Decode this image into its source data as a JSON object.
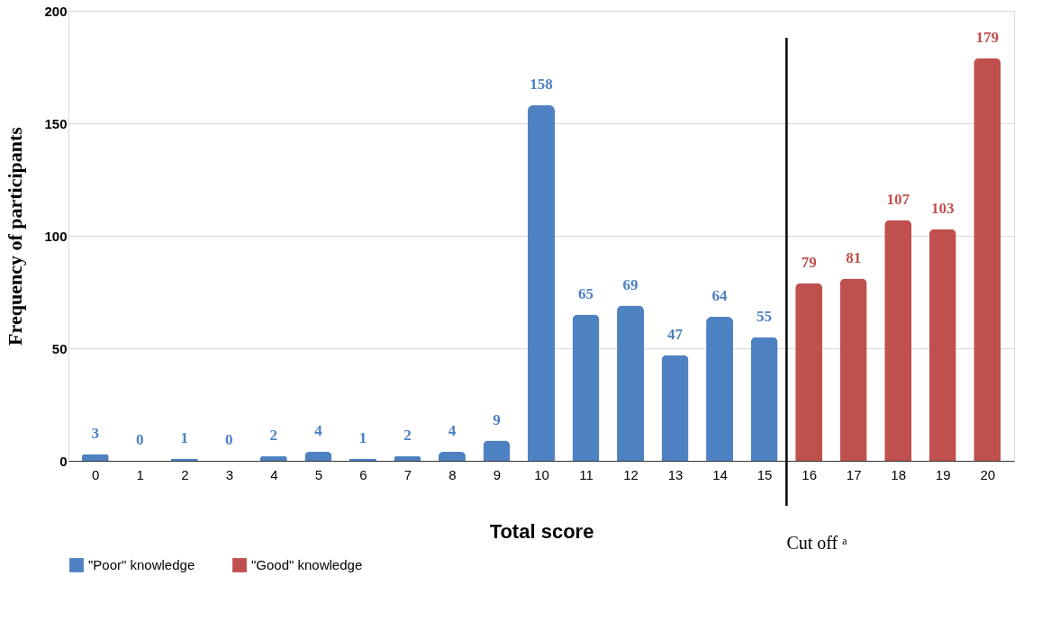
{
  "chart_data": {
    "type": "bar",
    "xlabel": "Total score",
    "ylabel": "Frequency of participants",
    "x": [
      0,
      1,
      2,
      3,
      4,
      5,
      6,
      7,
      8,
      9,
      10,
      11,
      12,
      13,
      14,
      15,
      16,
      17,
      18,
      19,
      20
    ],
    "xlim": [
      -0.5,
      20.5
    ],
    "xticks": [
      0,
      1,
      2,
      3,
      4,
      5,
      6,
      7,
      8,
      9,
      10,
      11,
      12,
      13,
      14,
      15,
      16,
      17,
      18,
      19,
      20
    ],
    "ylim": [
      0,
      200
    ],
    "yticks": [
      0,
      50,
      100,
      150,
      200
    ],
    "grid": "y",
    "legend": "bottom",
    "data_labels": true,
    "series": [
      {
        "name": "\"Poor\" knowledge",
        "color": "#4e81c2",
        "values": [
          3,
          0,
          1,
          0,
          2,
          4,
          1,
          2,
          4,
          9,
          158,
          65,
          69,
          47,
          64,
          55,
          null,
          null,
          null,
          null,
          null
        ]
      },
      {
        "name": "\"Good\" knowledge",
        "color": "#c0504d",
        "values": [
          null,
          null,
          null,
          null,
          null,
          null,
          null,
          null,
          null,
          null,
          null,
          null,
          null,
          null,
          null,
          null,
          79,
          81,
          107,
          103,
          179
        ]
      }
    ],
    "ref_lines": [
      {
        "axis": "x",
        "value": 15.5,
        "label": "Cut off ᵃ",
        "color": "#000000"
      }
    ]
  }
}
